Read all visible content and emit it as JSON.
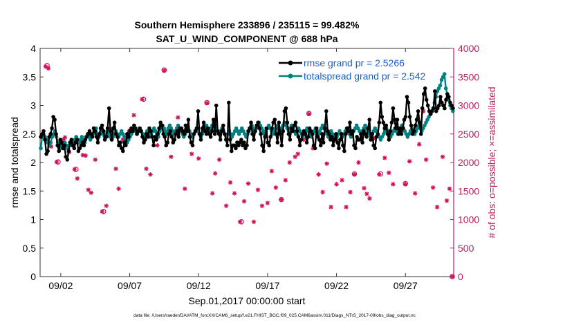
{
  "chart_data": {
    "type": "line",
    "title_lines": [
      "Southern Hemisphere 233896 / 235115 = 99.482%",
      "SAT_U_WIND_COMPONENT @ 688 hPa"
    ],
    "xlabel": "Sep.01,2017 00:00:00 start",
    "ylabel_left": "rmse and totalspread",
    "ylabel_right": "# of obs: o=possible; ×=assimilated",
    "ylim_left": [
      0,
      4
    ],
    "ylim_right": [
      0,
      4000
    ],
    "xlim": [
      0.5,
      30.5
    ],
    "yticks_left": [
      "0",
      "0.5",
      "1",
      "1.5",
      "2",
      "2.5",
      "3",
      "3.5",
      "4"
    ],
    "yticks_right": [
      "0",
      "500",
      "1000",
      "1500",
      "2000",
      "2500",
      "3000",
      "3500",
      "4000"
    ],
    "xtick_positions": [
      2,
      7,
      12,
      17,
      22,
      27
    ],
    "xtick_labels": [
      "09/02",
      "09/07",
      "09/12",
      "09/17",
      "09/22",
      "09/27"
    ],
    "footer": "data file: /Users/raeder/DAI/ATM_forcXX/CAM6_setup/f.e21.FHIST_BGC.f09_025.CAM6assim.011/Diags_NTrS_2017-09/obs_diag_output.nc",
    "colors": {
      "rmse": "#000000",
      "spread": "#008080",
      "obs": "#d0105a",
      "right_axis": "#c2185b",
      "legend_text": "#1a5fd0"
    },
    "series": [
      {
        "name": "rmse grand pr = 2.5266",
        "values": [
          2.45,
          2.5,
          2.55,
          2.4,
          2.15,
          2.2,
          2.45,
          2.5,
          2.6,
          2.8,
          2.75,
          2.5,
          2.3,
          2.2,
          2.4,
          2.35,
          2.25,
          2.3,
          2.1,
          2.05,
          2.2,
          2.35,
          2.4,
          2.3,
          2.25,
          2.35,
          2.4,
          2.2,
          2.25,
          2.3,
          2.35,
          2.3,
          2.4,
          2.45,
          2.5,
          2.55,
          2.5,
          2.45,
          2.6,
          2.55,
          2.45,
          2.35,
          2.5,
          2.6,
          2.65,
          2.55,
          2.4,
          2.45,
          2.6,
          2.95,
          2.55,
          2.4,
          2.6,
          2.7,
          2.5,
          2.45,
          2.3,
          2.35,
          2.25,
          2.2,
          2.35,
          2.3,
          2.5,
          2.45,
          2.55,
          2.6,
          2.55,
          2.65,
          2.6,
          2.5,
          2.55,
          2.6,
          2.55,
          2.45,
          2.35,
          2.4,
          2.5,
          2.45,
          2.6,
          2.55,
          2.45,
          2.3,
          2.45,
          2.4,
          2.5,
          2.6,
          2.7,
          2.65,
          2.5,
          2.45,
          2.3,
          2.35,
          2.5,
          2.55,
          2.45,
          2.35,
          2.4,
          2.5,
          2.55,
          2.45,
          2.6,
          2.6,
          2.55,
          2.5,
          2.65,
          2.55,
          2.75,
          2.45,
          2.35,
          2.3,
          2.5,
          2.55,
          2.6,
          2.9,
          2.5,
          2.4,
          2.6,
          2.7,
          2.55,
          2.5,
          2.6,
          2.5,
          2.45,
          2.55,
          2.75,
          2.5,
          3.0,
          2.55,
          2.5,
          2.4,
          2.55,
          2.65,
          2.5,
          2.4,
          2.3,
          3.05,
          2.4,
          2.2,
          2.3,
          2.3,
          2.25,
          2.35,
          2.3,
          2.35,
          2.4,
          2.3,
          2.35,
          2.25,
          2.3,
          2.55,
          2.6,
          2.7,
          2.5,
          2.4,
          2.55,
          2.65,
          2.7,
          2.6,
          2.5,
          2.3,
          2.2,
          2.45,
          2.6,
          2.35,
          2.3,
          2.45,
          2.6,
          2.7,
          2.75,
          2.5,
          2.35,
          2.7,
          2.5,
          2.3,
          2.55,
          2.9,
          2.95,
          2.7,
          2.5,
          2.4,
          2.6,
          2.55,
          2.65,
          2.7,
          2.55,
          2.45,
          2.3,
          2.4,
          2.5,
          2.55,
          2.5,
          2.35,
          2.45,
          2.6,
          2.55,
          2.5,
          2.3,
          2.25,
          2.6,
          2.45,
          2.4,
          2.3,
          2.5,
          2.35,
          2.6,
          2.9,
          2.55,
          2.5,
          2.4,
          2.45,
          2.3,
          2.4,
          2.5,
          2.35,
          2.25,
          2.4,
          2.5,
          2.3,
          2.2,
          2.5,
          2.6,
          2.55,
          2.7,
          2.5,
          2.55,
          2.3,
          2.25,
          2.45,
          2.4,
          2.4,
          2.5,
          2.35,
          2.55,
          2.5,
          2.45,
          2.6,
          2.75,
          2.4,
          2.5,
          2.3,
          2.25,
          2.45,
          2.5,
          2.7,
          3.05,
          2.8,
          2.7,
          2.6,
          2.65,
          2.5,
          2.4,
          2.55,
          2.7,
          2.95,
          2.75,
          2.6,
          2.75,
          2.5,
          2.6,
          2.5,
          2.6,
          2.75,
          2.8,
          3.15,
          3.05,
          2.8,
          2.65,
          2.5,
          2.55,
          2.65,
          2.75,
          2.9,
          2.7,
          2.5,
          2.95,
          3.2,
          3.3,
          3.1,
          3.0,
          2.9,
          2.85,
          2.9,
          2.95,
          3.25,
          2.9,
          2.95,
          3.0,
          3.15,
          3.05,
          3.0,
          2.95,
          3.1,
          3.2,
          3.15,
          3.05,
          3.0,
          2.95
        ]
      },
      {
        "name": "totalspread grand pr = 2.542",
        "values": [
          2.25,
          2.45,
          2.5,
          2.45,
          2.4,
          2.35,
          2.3,
          2.35,
          2.45,
          2.5,
          2.55,
          2.45,
          2.35,
          2.3,
          2.25,
          2.3,
          2.25,
          2.35,
          2.3,
          2.25,
          2.3,
          2.35,
          2.3,
          2.35,
          2.4,
          2.45,
          2.4,
          2.35,
          2.4,
          2.45,
          2.4,
          2.35,
          2.45,
          2.5,
          2.45,
          2.4,
          2.45,
          2.5,
          2.55,
          2.6,
          2.5,
          2.45,
          2.5,
          2.55,
          2.5,
          2.45,
          2.5,
          2.55,
          2.5,
          2.45,
          2.4,
          2.45,
          2.5,
          2.55,
          2.5,
          2.45,
          2.5,
          2.55,
          2.5,
          2.45,
          2.4,
          2.35,
          2.4,
          2.45,
          2.5,
          2.55,
          2.6,
          2.55,
          2.5,
          2.55,
          2.6,
          2.55,
          2.5,
          2.45,
          2.5,
          2.55,
          2.5,
          2.45,
          2.5,
          2.55,
          2.6,
          2.55,
          2.5,
          2.45,
          2.55,
          2.6,
          2.65,
          2.6,
          2.55,
          2.5,
          2.6,
          2.65,
          2.6,
          2.55,
          2.5,
          2.55,
          2.6,
          2.65,
          2.6,
          2.55,
          2.5,
          2.45,
          2.5,
          2.55,
          2.6,
          2.55,
          2.5,
          2.45,
          2.5,
          2.55,
          2.6,
          2.55,
          2.5,
          2.45,
          2.5,
          2.55,
          2.6,
          2.65,
          2.6,
          2.55,
          2.6,
          2.65,
          2.7,
          2.65,
          2.6,
          2.55,
          2.5,
          2.55,
          2.6,
          2.55,
          2.5,
          2.45,
          2.5,
          2.55,
          2.5,
          2.45,
          2.5,
          2.55,
          2.6,
          2.55,
          2.5,
          2.55,
          2.6,
          2.55,
          2.5,
          2.45,
          2.5,
          2.55,
          2.6,
          2.65,
          2.6,
          2.55,
          2.6,
          2.65,
          2.7,
          2.65,
          2.6,
          2.55,
          2.5,
          2.55,
          2.6,
          2.65,
          2.6,
          2.55,
          2.5,
          2.55,
          2.6,
          2.65,
          2.6,
          2.55,
          2.6,
          2.65,
          2.7,
          2.65,
          2.6,
          2.55,
          2.6,
          2.65,
          2.6,
          2.55,
          2.5,
          2.55,
          2.6,
          2.55,
          2.5,
          2.45,
          2.5,
          2.55,
          2.6,
          2.55,
          2.5,
          2.45,
          2.5,
          2.55,
          2.6,
          2.55,
          2.5,
          2.55,
          2.6,
          2.65,
          2.6,
          2.55,
          2.5,
          2.45,
          2.5,
          2.55,
          2.5,
          2.45,
          2.4,
          2.45,
          2.5,
          2.55,
          2.5,
          2.45,
          2.5,
          2.55,
          2.6,
          2.55,
          2.5,
          2.45,
          2.5,
          2.55,
          2.6,
          2.65,
          2.6,
          2.55,
          2.5,
          2.55,
          2.6,
          2.65,
          2.6,
          2.55,
          2.5,
          2.45,
          2.5,
          2.55,
          2.6,
          2.55,
          2.5,
          2.45,
          2.4,
          2.45,
          2.5,
          2.55,
          2.6,
          2.55,
          2.5,
          2.45,
          2.5,
          2.55,
          2.6,
          2.55,
          2.5,
          2.55,
          2.6,
          2.65,
          2.6,
          2.55,
          2.5,
          2.45,
          2.5,
          2.55,
          2.6,
          2.55,
          2.5,
          2.55,
          2.6,
          2.65,
          2.6,
          2.55,
          2.6,
          2.65,
          2.7,
          2.75,
          2.8,
          2.85,
          2.9,
          2.95,
          3.05,
          3.15,
          3.25,
          3.3,
          3.35,
          3.45,
          3.5,
          3.55,
          3.3,
          3.2,
          3.1,
          3.0,
          2.95,
          2.9
        ]
      }
    ],
    "obs_assimilated": [
      {
        "x": 0.9,
        "y": 3680
      },
      {
        "x": 1.1,
        "y": 3650
      },
      {
        "x": 1.3,
        "y": 2280
      },
      {
        "x": 1.6,
        "y": 2490
      },
      {
        "x": 1.7,
        "y": 2010
      },
      {
        "x": 2.2,
        "y": 2400
      },
      {
        "x": 2.3,
        "y": 2440
      },
      {
        "x": 2.6,
        "y": 2180
      },
      {
        "x": 3.0,
        "y": 1880
      },
      {
        "x": 3.2,
        "y": 1720
      },
      {
        "x": 3.6,
        "y": 2130
      },
      {
        "x": 3.8,
        "y": 2120
      },
      {
        "x": 4.0,
        "y": 1520
      },
      {
        "x": 4.2,
        "y": 1470
      },
      {
        "x": 4.5,
        "y": 2050
      },
      {
        "x": 5.0,
        "y": 1140
      },
      {
        "x": 5.3,
        "y": 1240
      },
      {
        "x": 5.5,
        "y": 2460
      },
      {
        "x": 6.0,
        "y": 1890
      },
      {
        "x": 6.2,
        "y": 1540
      },
      {
        "x": 6.5,
        "y": 2400
      },
      {
        "x": 7.0,
        "y": 2550
      },
      {
        "x": 7.3,
        "y": 2830
      },
      {
        "x": 7.9,
        "y": 3110
      },
      {
        "x": 8.2,
        "y": 1890
      },
      {
        "x": 8.5,
        "y": 1790
      },
      {
        "x": 9.0,
        "y": 2300
      },
      {
        "x": 9.5,
        "y": 3610
      },
      {
        "x": 10.0,
        "y": 2100
      },
      {
        "x": 10.5,
        "y": 2790
      },
      {
        "x": 11.0,
        "y": 1540
      },
      {
        "x": 11.5,
        "y": 2150
      },
      {
        "x": 12.0,
        "y": 2070
      },
      {
        "x": 12.6,
        "y": 3040
      },
      {
        "x": 13.0,
        "y": 1460
      },
      {
        "x": 13.2,
        "y": 1810
      },
      {
        "x": 13.5,
        "y": 2050
      },
      {
        "x": 14.0,
        "y": 1240
      },
      {
        "x": 14.3,
        "y": 1650
      },
      {
        "x": 14.6,
        "y": 1460
      },
      {
        "x": 15.0,
        "y": 960
      },
      {
        "x": 15.3,
        "y": 1320
      },
      {
        "x": 15.6,
        "y": 1630
      },
      {
        "x": 16.0,
        "y": 960
      },
      {
        "x": 16.3,
        "y": 1520
      },
      {
        "x": 16.6,
        "y": 1240
      },
      {
        "x": 17.0,
        "y": 1290
      },
      {
        "x": 17.3,
        "y": 1850
      },
      {
        "x": 17.6,
        "y": 1560
      },
      {
        "x": 18.0,
        "y": 1350
      },
      {
        "x": 18.3,
        "y": 1690
      },
      {
        "x": 18.6,
        "y": 2000
      },
      {
        "x": 19.0,
        "y": 2100
      },
      {
        "x": 19.2,
        "y": 2150
      },
      {
        "x": 19.6,
        "y": 2400
      },
      {
        "x": 20.0,
        "y": 2850
      },
      {
        "x": 20.3,
        "y": 2250
      },
      {
        "x": 20.7,
        "y": 1790
      },
      {
        "x": 21.0,
        "y": 1480
      },
      {
        "x": 21.3,
        "y": 1980
      },
      {
        "x": 21.6,
        "y": 1220
      },
      {
        "x": 22.0,
        "y": 1620
      },
      {
        "x": 22.4,
        "y": 1690
      },
      {
        "x": 22.7,
        "y": 1220
      },
      {
        "x": 23.0,
        "y": 1480
      },
      {
        "x": 23.3,
        "y": 1790
      },
      {
        "x": 23.6,
        "y": 2000
      },
      {
        "x": 24.0,
        "y": 1550
      },
      {
        "x": 24.2,
        "y": 1450
      },
      {
        "x": 24.4,
        "y": 1370
      },
      {
        "x": 24.7,
        "y": 2420
      },
      {
        "x": 25.1,
        "y": 1790
      },
      {
        "x": 25.5,
        "y": 2080
      },
      {
        "x": 25.8,
        "y": 1820
      },
      {
        "x": 26.1,
        "y": 1620
      },
      {
        "x": 26.5,
        "y": 2520
      },
      {
        "x": 27.0,
        "y": 1620
      },
      {
        "x": 27.3,
        "y": 2020
      },
      {
        "x": 27.7,
        "y": 1460
      },
      {
        "x": 28.0,
        "y": 2320
      },
      {
        "x": 28.3,
        "y": 2900
      },
      {
        "x": 28.5,
        "y": 2050
      },
      {
        "x": 29.0,
        "y": 1560
      },
      {
        "x": 29.3,
        "y": 1220
      },
      {
        "x": 29.7,
        "y": 2100
      },
      {
        "x": 30.0,
        "y": 1330
      },
      {
        "x": 30.2,
        "y": 1540
      },
      {
        "x": 30.4,
        "y": 0
      }
    ],
    "obs_possible": [
      {
        "x": 1.0,
        "y": 3700
      },
      {
        "x": 1.8,
        "y": 2010
      },
      {
        "x": 3.1,
        "y": 1880
      },
      {
        "x": 5.1,
        "y": 1140
      },
      {
        "x": 7.0,
        "y": 2550
      },
      {
        "x": 8.0,
        "y": 3110
      },
      {
        "x": 9.5,
        "y": 3620
      },
      {
        "x": 12.6,
        "y": 3050
      },
      {
        "x": 15.1,
        "y": 960
      },
      {
        "x": 18.0,
        "y": 1350
      },
      {
        "x": 20.0,
        "y": 2860
      },
      {
        "x": 23.3,
        "y": 1800
      },
      {
        "x": 25.2,
        "y": 1800
      },
      {
        "x": 27.0,
        "y": 1630
      },
      {
        "x": 30.4,
        "y": 0
      }
    ]
  }
}
